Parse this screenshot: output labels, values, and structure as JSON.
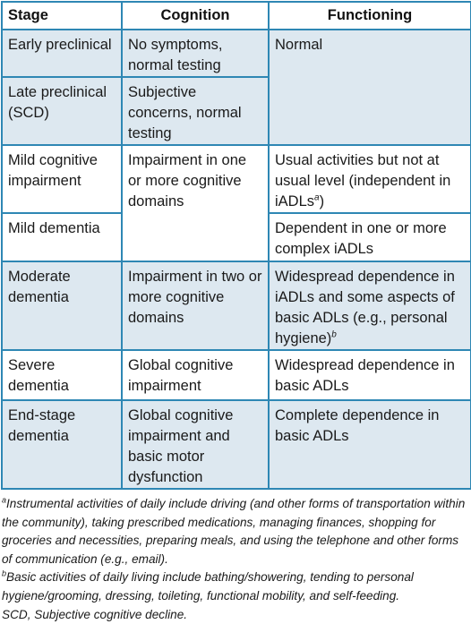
{
  "table": {
    "headers": [
      "Stage",
      "Cognition",
      "Functioning"
    ],
    "rows": [
      {
        "stage": "Early preclinical",
        "cognition": "No symptoms, normal testing",
        "functioning": "Normal"
      },
      {
        "stage": "Late preclinical (SCD)",
        "cognition": "Subjective concerns, normal testing",
        "functioning": ""
      },
      {
        "stage": "Mild cognitive impairment",
        "cognition": "Impairment in one or more cognitive domains",
        "functioning": "Usual activities but not at usual level (independent in iADLs",
        "functioning_sup": "a",
        "functioning_tail": ")"
      },
      {
        "stage": "Mild dementia",
        "cognition": "",
        "functioning": "Dependent in one or more complex iADLs"
      },
      {
        "stage": "Moderate dementia",
        "cognition": "Impairment in two or more cognitive domains",
        "functioning": "Widespread dependence in iADLs and some aspects of basic ADLs (e.g., personal hygiene)",
        "functioning_sup": "b"
      },
      {
        "stage": "Severe dementia",
        "cognition": "Global cognitive impairment",
        "functioning": "Widespread dependence in basic ADLs"
      },
      {
        "stage": "End-stage dementia",
        "cognition": "Global cognitive impairment and basic motor dysfunction",
        "functioning": "Complete dependence in basic ADLs"
      }
    ]
  },
  "footnotes": {
    "a_marker": "a",
    "a_text": "Instrumental activities of daily include driving (and other forms of transportation within the community), taking prescribed medications, managing finances, shopping for groceries and necessities, preparing meals, and using the telephone and other forms of communication (e.g., email).",
    "b_marker": "b",
    "b_text": "Basic activities of daily living include bathing/showering, tending to personal hygiene/grooming, dressing, toileting, functional mobility, and self-feeding.",
    "scd": "SCD, Subjective cognitive decline."
  },
  "colors": {
    "border": "#2e87b4",
    "shaded_row": "#dde8f0"
  }
}
